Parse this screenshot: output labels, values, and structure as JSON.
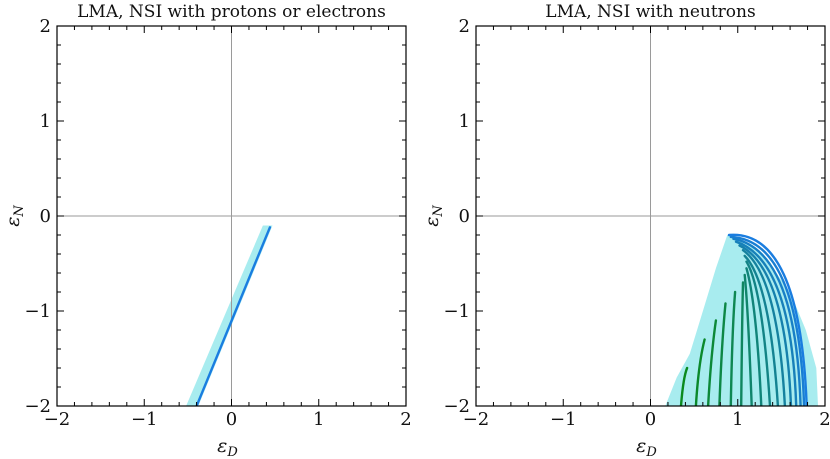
{
  "chart_data": [
    {
      "type": "line",
      "title": "LMA, NSI with protons or electrons",
      "xlabel": "ε_D",
      "ylabel": "ε_N",
      "xlim": [
        -2,
        2
      ],
      "ylim": [
        -2,
        2
      ],
      "xticks": [
        "−2",
        "−1",
        "0",
        "1",
        "2"
      ],
      "yticks": [
        "−2",
        "−1",
        "0",
        "1",
        "2"
      ],
      "grid": false,
      "zero_lines": true,
      "colors": {
        "band": "#a8ecef",
        "line": "#1a7de0"
      },
      "band": {
        "upper": {
          "x": [
            0.45,
            -0.38
          ],
          "y": [
            -0.1,
            -2.0
          ]
        },
        "lower": {
          "x": [
            0.35,
            -0.5
          ],
          "y": [
            -0.1,
            -2.0
          ]
        },
        "polygon": [
          [
            0.36,
            -0.1
          ],
          [
            0.47,
            -0.1
          ],
          [
            -0.38,
            -2.0
          ],
          [
            -0.52,
            -2.0
          ]
        ]
      },
      "series": [
        {
          "x": [
            0.44,
            -0.4
          ],
          "y": [
            -0.12,
            -2.0
          ]
        }
      ]
    },
    {
      "type": "line",
      "title": "LMA, NSI with neutrons",
      "xlabel": "ε_D",
      "ylabel": "ε_N",
      "xlim": [
        -2,
        2
      ],
      "ylim": [
        -2,
        2
      ],
      "xticks": [
        "−2",
        "−1",
        "0",
        "1",
        "2"
      ],
      "yticks": [
        "−2",
        "−1",
        "0",
        "1",
        "2"
      ],
      "grid": false,
      "zero_lines": true,
      "colors": {
        "band": "#a8ecef",
        "line_start": "#0a8a1e",
        "line_end": "#1a7de0"
      },
      "band": {
        "polygon": [
          [
            0.88,
            -0.2
          ],
          [
            1.0,
            -0.22
          ],
          [
            1.3,
            -0.42
          ],
          [
            1.6,
            -0.8
          ],
          [
            1.78,
            -1.2
          ],
          [
            1.9,
            -1.6
          ],
          [
            1.92,
            -2.0
          ],
          [
            0.17,
            -2.0
          ],
          [
            0.3,
            -1.7
          ],
          [
            0.45,
            -1.45
          ],
          [
            0.6,
            -1.0
          ],
          [
            0.75,
            -0.55
          ]
        ]
      },
      "series": [
        {
          "x": [
            0.35,
            0.38,
            0.42
          ],
          "y": [
            -2.0,
            -1.75,
            -1.6
          ]
        },
        {
          "x": [
            0.52,
            0.56,
            0.62
          ],
          "y": [
            -2.0,
            -1.6,
            -1.3
          ]
        },
        {
          "x": [
            0.66,
            0.7,
            0.75
          ],
          "y": [
            -2.0,
            -1.5,
            -1.1
          ]
        },
        {
          "x": [
            0.79,
            0.82,
            0.86
          ],
          "y": [
            -2.0,
            -1.4,
            -0.92
          ]
        },
        {
          "x": [
            0.92,
            0.94,
            0.97
          ],
          "y": [
            -2.0,
            -1.3,
            -0.8
          ]
        },
        {
          "x": [
            1.04,
            1.05,
            1.06
          ],
          "y": [
            -2.0,
            -1.2,
            -0.7
          ]
        },
        {
          "x": [
            1.16,
            1.12,
            1.08
          ],
          "y": [
            -2.0,
            -1.15,
            -0.62
          ]
        },
        {
          "x": [
            1.27,
            1.2,
            1.1
          ],
          "y": [
            -2.0,
            -1.1,
            -0.55
          ]
        },
        {
          "x": [
            1.37,
            1.26,
            1.1
          ],
          "y": [
            -2.0,
            -1.0,
            -0.48
          ]
        },
        {
          "x": [
            1.46,
            1.32,
            1.08
          ],
          "y": [
            -2.0,
            -0.95,
            -0.42
          ]
        },
        {
          "x": [
            1.54,
            1.38,
            1.06
          ],
          "y": [
            -2.0,
            -0.9,
            -0.36
          ]
        },
        {
          "x": [
            1.61,
            1.43,
            1.02
          ],
          "y": [
            -2.0,
            -0.85,
            -0.31
          ]
        },
        {
          "x": [
            1.67,
            1.47,
            0.98
          ],
          "y": [
            -2.0,
            -0.8,
            -0.27
          ]
        },
        {
          "x": [
            1.72,
            1.5,
            0.95
          ],
          "y": [
            -2.0,
            -0.74,
            -0.24
          ]
        },
        {
          "x": [
            1.76,
            1.52,
            0.92
          ],
          "y": [
            -2.0,
            -0.68,
            -0.22
          ]
        },
        {
          "x": [
            1.79,
            1.53,
            0.9
          ],
          "y": [
            -2.0,
            -0.62,
            -0.2
          ]
        }
      ]
    }
  ]
}
